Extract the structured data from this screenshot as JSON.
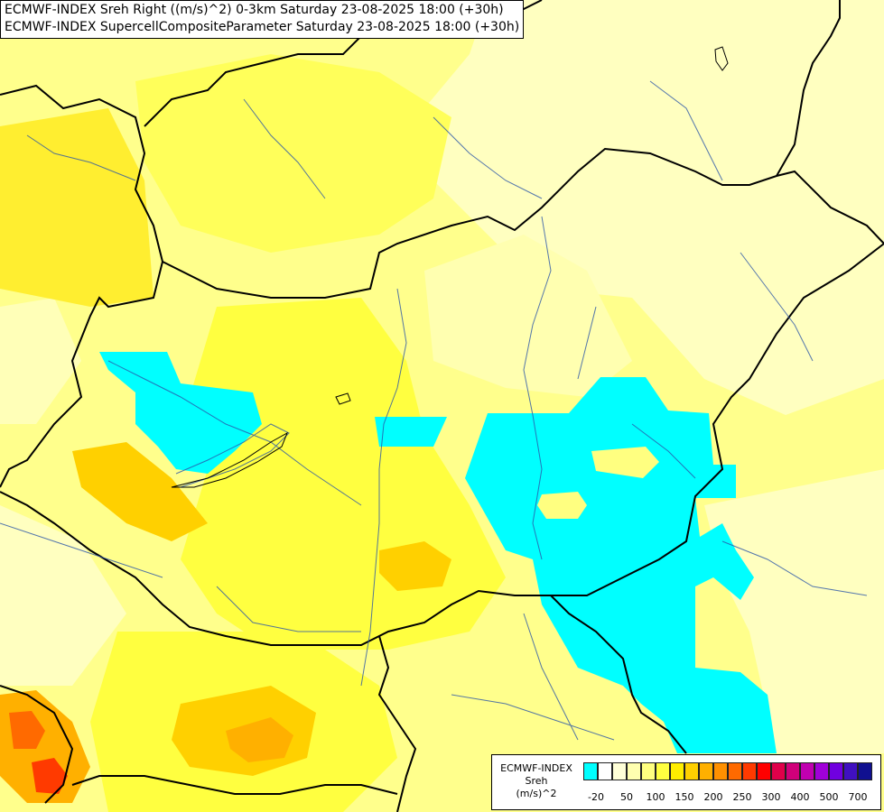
{
  "title": {
    "line1": "ECMWF-INDEX Sreh Right ((m/s)^2) 0-3km Saturday 23-08-2025 18:00 (+30h)",
    "line2": "ECMWF-INDEX SupercellCompositeParameter Saturday 23-08-2025 18:00 (+30h)"
  },
  "legend": {
    "line1": "ECMWF-INDEX",
    "line2": "Sreh",
    "line3": "(m/s)^2",
    "colors": [
      "#00ffff",
      "#ffffff",
      "#ffffd8",
      "#ffffb0",
      "#ffff80",
      "#ffff40",
      "#ffee00",
      "#ffd000",
      "#ffb000",
      "#ff9000",
      "#ff6a00",
      "#ff3a00",
      "#ff0000",
      "#e0004a",
      "#d0007a",
      "#c000b0",
      "#a000d8",
      "#7000e0",
      "#4010c0",
      "#101090"
    ],
    "ticks": [
      "-20",
      "50",
      "100",
      "150",
      "200",
      "250",
      "300",
      "400",
      "500",
      "700"
    ]
  }
}
